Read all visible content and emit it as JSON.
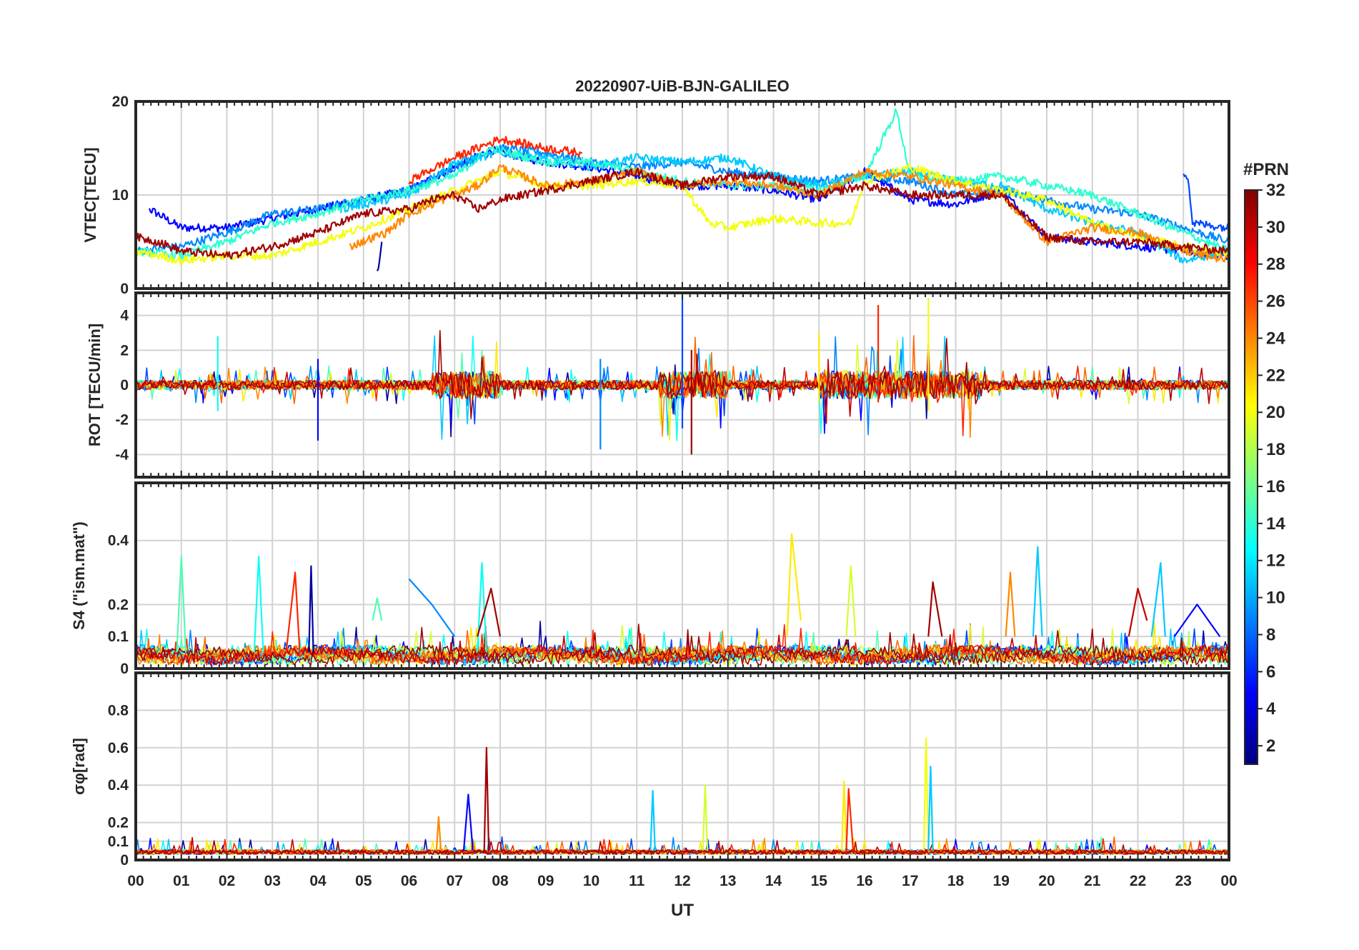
{
  "figure": {
    "title": "20220907-UiB-BJN-GALILEO",
    "xlabel": "UT"
  },
  "colorbar": {
    "label": "#PRN",
    "ticks": [
      "2",
      "4",
      "6",
      "8",
      "10",
      "12",
      "14",
      "16",
      "18",
      "20",
      "22",
      "24",
      "26",
      "28",
      "30",
      "32"
    ],
    "range": [
      1,
      32
    ],
    "colormap": "jet"
  },
  "colors": {
    "prn_2": "#0a0a8f",
    "prn_5": "#0028d8",
    "prn_7": "#0b64e6",
    "prn_9": "#1a96f0",
    "prn_11": "#12c8f2",
    "prn_13": "#37e8d8",
    "prn_15": "#6ef0a0",
    "prn_19": "#e6f20f",
    "prn_21": "#ffd400",
    "prn_24": "#ff8c00",
    "prn_25": "#ff6a00",
    "prn_27": "#ee2200",
    "prn_30": "#b00000",
    "prn_31": "#8c0000"
  },
  "chart_data": [
    {
      "type": "line",
      "panel": "vtec",
      "ylabel": "VTEC[TECU]",
      "xlim": [
        0,
        24
      ],
      "ylim": [
        0,
        20
      ],
      "yticks": [
        "0",
        "10",
        "20"
      ],
      "xticks": [
        "00",
        "01",
        "02",
        "03",
        "04",
        "05",
        "06",
        "07",
        "08",
        "09",
        "10",
        "11",
        "12",
        "13",
        "14",
        "15",
        "16",
        "17",
        "18",
        "19",
        "20",
        "21",
        "22",
        "23",
        "00"
      ],
      "grid": true,
      "series": [
        {
          "prn": 5,
          "x": [
            0.3,
            1.0,
            2.0,
            3.0,
            4.0,
            5.0,
            6.0,
            7.0,
            7.8,
            9.0,
            10.0,
            11.0,
            12.0,
            13.0,
            14.0,
            15.0,
            16.0,
            17.0,
            18.0,
            19.0,
            20.0,
            21.0,
            22.0,
            23.0,
            24.0
          ],
          "y": [
            8.5,
            6.5,
            6.5,
            7.5,
            8.5,
            9.5,
            10.5,
            13.0,
            14.8,
            13.5,
            13.0,
            12.0,
            11.0,
            11.0,
            10.5,
            9.5,
            12.5,
            9.5,
            9.0,
            10.5,
            5.5,
            5.0,
            4.5,
            4.0,
            3.5
          ]
        },
        {
          "prn": 9,
          "x": [
            0.0,
            1.0,
            2.0,
            3.0,
            4.0,
            5.0,
            6.0,
            7.0,
            8.0,
            9.0,
            10.0,
            11.0,
            12.0,
            13.0,
            14.0,
            15.0,
            16.0,
            17.0,
            18.0,
            19.0,
            20.0,
            21.0,
            22.0,
            23.0,
            24.0
          ],
          "y": [
            4.0,
            4.5,
            6.0,
            8.0,
            8.5,
            9.5,
            10.5,
            13.0,
            15.0,
            14.5,
            13.5,
            13.0,
            13.5,
            12.5,
            12.0,
            11.5,
            12.0,
            11.5,
            10.0,
            10.5,
            9.5,
            8.5,
            8.0,
            6.5,
            5.0
          ]
        },
        {
          "prn": 11,
          "x": [
            4.5,
            6.0,
            7.0,
            8.0,
            9.0,
            10.0,
            11.0,
            12.0,
            13.0,
            14.0,
            15.0,
            16.0,
            17.0,
            18.0,
            19.0,
            20.0,
            21.0,
            22.0,
            23.0,
            24.0
          ],
          "y": [
            8.5,
            10.0,
            13.5,
            14.5,
            14.0,
            13.0,
            14.0,
            13.5,
            14.0,
            12.0,
            11.0,
            12.0,
            12.5,
            11.5,
            11.0,
            8.5,
            7.0,
            6.0,
            3.0,
            4.0
          ]
        },
        {
          "prn": 14,
          "x": [
            0.0,
            1.0,
            2.0,
            3.0,
            4.0,
            5.0,
            6.0,
            7.0,
            7.8,
            9.0,
            10.0,
            11.0,
            12.0,
            13.0,
            14.0,
            15.0,
            16.0,
            16.7,
            17.0,
            18.0,
            19.0,
            20.0,
            21.0,
            22.0,
            23.0,
            24.0
          ],
          "y": [
            4.0,
            3.5,
            5.0,
            7.0,
            8.0,
            9.5,
            10.5,
            12.0,
            15.0,
            13.5,
            13.5,
            12.5,
            11.5,
            11.0,
            11.0,
            10.5,
            12.0,
            19.0,
            12.0,
            11.5,
            12.0,
            11.0,
            10.0,
            8.0,
            6.0,
            4.0
          ]
        },
        {
          "prn": 20,
          "x": [
            0.0,
            1.0,
            2.0,
            3.0,
            4.0,
            5.0,
            6.0,
            7.0,
            8.0,
            9.0,
            10.0,
            11.0,
            12.0,
            12.6,
            13.0,
            14.0,
            15.0,
            15.7,
            16.0,
            17.0,
            18.0,
            19.0,
            20.0,
            21.0,
            22.0,
            23.0,
            24.0
          ],
          "y": [
            4.0,
            3.0,
            3.5,
            3.5,
            5.0,
            6.5,
            8.5,
            10.5,
            12.5,
            11.0,
            11.0,
            11.5,
            11.0,
            7.0,
            6.5,
            7.5,
            7.0,
            7.0,
            11.5,
            13.0,
            11.5,
            10.5,
            9.5,
            7.0,
            5.5,
            4.5,
            3.5
          ]
        },
        {
          "prn": 24,
          "x": [
            4.7,
            5.5,
            6.0,
            7.0,
            7.5,
            8.0,
            9.0,
            10.0,
            11.0,
            12.0,
            13.0,
            14.0,
            15.0,
            16.0,
            17.0,
            18.0,
            19.0,
            20.0,
            21.0,
            22.0,
            23.0,
            24.0
          ],
          "y": [
            4.5,
            6.0,
            8.0,
            10.0,
            11.0,
            13.0,
            11.0,
            11.5,
            12.5,
            11.0,
            11.5,
            11.0,
            10.0,
            12.5,
            12.0,
            11.0,
            10.0,
            5.0,
            6.5,
            6.0,
            4.0,
            3.0
          ]
        },
        {
          "prn": 27,
          "x": [
            6.0,
            7.0,
            8.0,
            9.0,
            9.8
          ],
          "y": [
            11.5,
            14.0,
            16.0,
            15.0,
            14.5
          ]
        },
        {
          "prn": 31,
          "x": [
            0.0,
            0.5,
            1.0,
            2.0,
            3.0,
            4.0,
            5.0,
            6.0,
            6.5,
            7.0,
            7.5,
            8.0,
            11.0,
            12.0,
            13.0,
            14.0,
            15.0,
            16.0,
            17.0,
            18.0,
            19.0,
            20.0,
            21.0,
            22.0,
            23.0,
            24.0
          ],
          "y": [
            5.5,
            5.0,
            4.0,
            3.5,
            4.5,
            6.0,
            8.0,
            8.5,
            9.5,
            10.0,
            8.5,
            9.5,
            12.5,
            11.0,
            12.0,
            12.0,
            10.0,
            11.0,
            10.0,
            10.0,
            10.0,
            5.5,
            5.0,
            5.0,
            4.5,
            4.0
          ]
        },
        {
          "prn": 2,
          "x": [
            5.3,
            5.4
          ],
          "y": [
            1.5,
            5.0
          ]
        },
        {
          "prn": 7,
          "x": [
            23.0,
            23.1,
            23.2,
            24.0
          ],
          "y": [
            12.5,
            12.0,
            7.0,
            6.5
          ]
        }
      ]
    },
    {
      "type": "line",
      "panel": "rot",
      "ylabel": "ROT [TECU/min]",
      "xlim": [
        0,
        24
      ],
      "ylim": [
        -5.3,
        5.3
      ],
      "yticks": [
        "-4",
        "-2",
        "0",
        "2",
        "4"
      ],
      "grid": true,
      "series": [
        {
          "prn": 7,
          "x": [
            12.0,
            12.0
          ],
          "y": [
            -2.5,
            5.3
          ]
        },
        {
          "prn": 20,
          "x": [
            17.4,
            17.4
          ],
          "y": [
            -1.5,
            5.0
          ]
        },
        {
          "prn": 27,
          "x": [
            16.3,
            16.3
          ],
          "y": [
            -1.0,
            4.6
          ]
        },
        {
          "prn": 31,
          "x": [
            12.2,
            12.2
          ],
          "y": [
            -4.0,
            2.0
          ]
        },
        {
          "prn": 9,
          "x": [
            10.2,
            10.2
          ],
          "y": [
            -3.7,
            1.5
          ]
        },
        {
          "prn": 5,
          "x": [
            4.0,
            4.0
          ],
          "y": [
            -3.2,
            1.5
          ]
        },
        {
          "prn": 13,
          "x": [
            1.8,
            1.8
          ],
          "y": [
            -1.5,
            2.8
          ]
        },
        {
          "prn": 21,
          "x": [
            15.0,
            15.0
          ],
          "y": [
            -1.0,
            3.0
          ]
        }
      ]
    },
    {
      "type": "line",
      "panel": "s4",
      "ylabel": "S4 (\"ism.mat\")",
      "xlim": [
        0,
        24
      ],
      "ylim": [
        0,
        0.58
      ],
      "yticks": [
        "0",
        "0.1",
        "0.2",
        "0.4"
      ],
      "grid": true,
      "series": [
        {
          "prn": 15,
          "x": [
            0.9,
            1.0,
            1.1
          ],
          "y": [
            0.05,
            0.35,
            0.05
          ]
        },
        {
          "prn": 13,
          "x": [
            2.6,
            2.7,
            2.8
          ],
          "y": [
            0.05,
            0.35,
            0.05
          ]
        },
        {
          "prn": 27,
          "x": [
            3.3,
            3.5,
            3.6
          ],
          "y": [
            0.05,
            0.3,
            0.05
          ]
        },
        {
          "prn": 2,
          "x": [
            3.8,
            3.85,
            3.9
          ],
          "y": [
            0.05,
            0.32,
            0.05
          ]
        },
        {
          "prn": 15,
          "x": [
            5.2,
            5.3,
            5.4
          ],
          "y": [
            0.15,
            0.22,
            0.15
          ]
        },
        {
          "prn": 9,
          "x": [
            6.0,
            6.5,
            7.0
          ],
          "y": [
            0.28,
            0.2,
            0.1
          ]
        },
        {
          "prn": 13,
          "x": [
            7.5,
            7.6,
            7.7
          ],
          "y": [
            0.05,
            0.33,
            0.05
          ]
        },
        {
          "prn": 31,
          "x": [
            7.5,
            7.8,
            8.0
          ],
          "y": [
            0.1,
            0.25,
            0.1
          ]
        },
        {
          "prn": 21,
          "x": [
            14.3,
            14.4,
            14.6
          ],
          "y": [
            0.1,
            0.42,
            0.15
          ]
        },
        {
          "prn": 19,
          "x": [
            15.6,
            15.7,
            15.8
          ],
          "y": [
            0.1,
            0.32,
            0.1
          ]
        },
        {
          "prn": 31,
          "x": [
            17.4,
            17.5,
            17.7
          ],
          "y": [
            0.1,
            0.27,
            0.1
          ]
        },
        {
          "prn": 24,
          "x": [
            19.1,
            19.2,
            19.3
          ],
          "y": [
            0.1,
            0.3,
            0.1
          ]
        },
        {
          "prn": 11,
          "x": [
            19.7,
            19.8,
            19.9
          ],
          "y": [
            0.1,
            0.38,
            0.1
          ]
        },
        {
          "prn": 11,
          "x": [
            22.3,
            22.5,
            22.6
          ],
          "y": [
            0.1,
            0.33,
            0.1
          ]
        },
        {
          "prn": 30,
          "x": [
            21.8,
            22.0,
            22.2
          ],
          "y": [
            0.1,
            0.25,
            0.15
          ]
        },
        {
          "prn": 5,
          "x": [
            22.8,
            23.3,
            23.8
          ],
          "y": [
            0.1,
            0.2,
            0.1
          ]
        }
      ]
    },
    {
      "type": "line",
      "panel": "sigma_phi",
      "ylabel": "σφ[rad]",
      "xlim": [
        0,
        24
      ],
      "ylim": [
        0,
        1.0
      ],
      "yticks": [
        "0",
        "0.1",
        "0.2",
        "0.4",
        "0.6",
        "0.8"
      ],
      "grid": true,
      "series": [
        {
          "prn": 31,
          "x": [
            7.65,
            7.7,
            7.75
          ],
          "y": [
            0.05,
            0.6,
            0.05
          ]
        },
        {
          "prn": 5,
          "x": [
            7.2,
            7.3,
            7.4
          ],
          "y": [
            0.05,
            0.35,
            0.05
          ]
        },
        {
          "prn": 20,
          "x": [
            17.3,
            17.35,
            17.4
          ],
          "y": [
            0.05,
            0.65,
            0.05
          ]
        },
        {
          "prn": 11,
          "x": [
            17.4,
            17.45,
            17.5
          ],
          "y": [
            0.05,
            0.5,
            0.05
          ]
        },
        {
          "prn": 21,
          "x": [
            15.5,
            15.55,
            15.6
          ],
          "y": [
            0.05,
            0.42,
            0.05
          ]
        },
        {
          "prn": 27,
          "x": [
            15.6,
            15.65,
            15.75
          ],
          "y": [
            0.05,
            0.38,
            0.05
          ]
        },
        {
          "prn": 19,
          "x": [
            12.45,
            12.5,
            12.55
          ],
          "y": [
            0.05,
            0.4,
            0.05
          ]
        },
        {
          "prn": 11,
          "x": [
            11.3,
            11.35,
            11.4
          ],
          "y": [
            0.05,
            0.37,
            0.05
          ]
        },
        {
          "prn": 24,
          "x": [
            6.6,
            6.65,
            6.7
          ],
          "y": [
            0.05,
            0.23,
            0.05
          ]
        }
      ]
    }
  ]
}
